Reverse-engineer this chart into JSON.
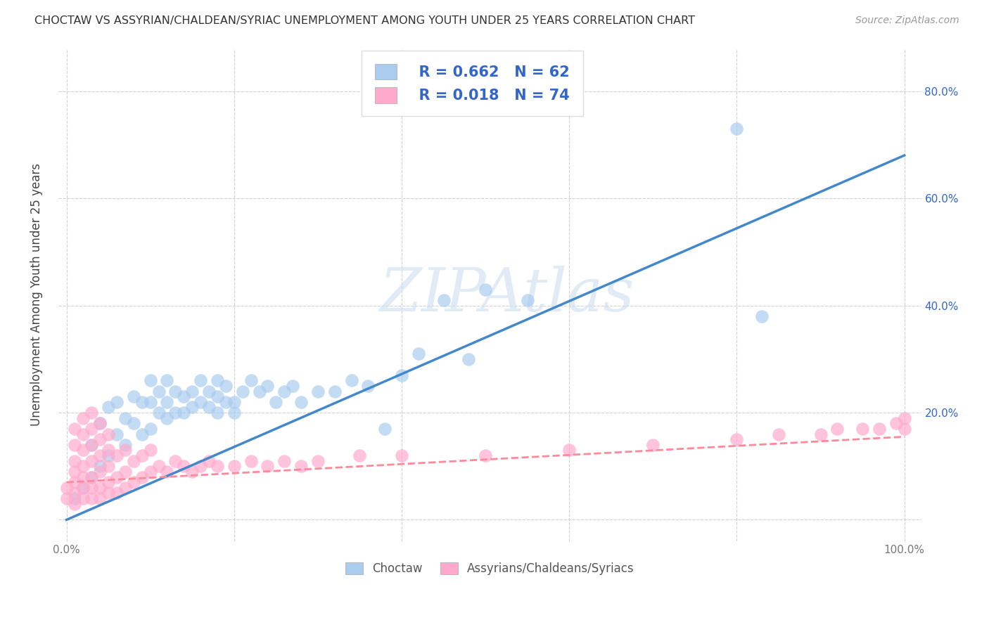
{
  "title": "CHOCTAW VS ASSYRIAN/CHALDEAN/SYRIAC UNEMPLOYMENT AMONG YOUTH UNDER 25 YEARS CORRELATION CHART",
  "source": "Source: ZipAtlas.com",
  "ylabel": "Unemployment Among Youth under 25 years",
  "xlim": [
    -0.01,
    1.02
  ],
  "ylim": [
    -0.04,
    0.88
  ],
  "xticks": [
    0.0,
    0.2,
    0.4,
    0.6,
    0.8,
    1.0
  ],
  "xticklabels": [
    "0.0%",
    "",
    "",
    "",
    "",
    "100.0%"
  ],
  "yticks": [
    0.0,
    0.2,
    0.4,
    0.6,
    0.8
  ],
  "yticklabels": [
    "",
    "",
    "",
    "",
    ""
  ],
  "right_yticks": [
    0.2,
    0.4,
    0.6,
    0.8
  ],
  "right_yticklabels": [
    "20.0%",
    "40.0%",
    "60.0%",
    "80.0%"
  ],
  "legend_r1": "R = 0.662",
  "legend_n1": "N = 62",
  "legend_r2": "R = 0.018",
  "legend_n2": "N = 74",
  "blue_color": "#AACCEE",
  "pink_color": "#FFAACC",
  "line_blue": "#4488CC",
  "line_pink": "#FF8899",
  "text_blue": "#3366CC",
  "watermark": "ZIPAtlas",
  "watermark_color": "#C8DCF0",
  "background_color": "#FFFFFF",
  "grid_color": "#CCCCCC",
  "choctaw_x": [
    0.01,
    0.02,
    0.03,
    0.03,
    0.04,
    0.04,
    0.05,
    0.05,
    0.06,
    0.06,
    0.07,
    0.07,
    0.08,
    0.08,
    0.09,
    0.09,
    0.1,
    0.1,
    0.1,
    0.11,
    0.11,
    0.12,
    0.12,
    0.12,
    0.13,
    0.13,
    0.14,
    0.14,
    0.15,
    0.15,
    0.16,
    0.16,
    0.17,
    0.17,
    0.18,
    0.18,
    0.18,
    0.19,
    0.19,
    0.2,
    0.2,
    0.21,
    0.22,
    0.23,
    0.24,
    0.25,
    0.26,
    0.27,
    0.28,
    0.3,
    0.32,
    0.34,
    0.36,
    0.38,
    0.4,
    0.42,
    0.45,
    0.48,
    0.5,
    0.55,
    0.8,
    0.83
  ],
  "choctaw_y": [
    0.04,
    0.06,
    0.08,
    0.14,
    0.1,
    0.18,
    0.12,
    0.21,
    0.16,
    0.22,
    0.14,
    0.19,
    0.18,
    0.23,
    0.16,
    0.22,
    0.17,
    0.22,
    0.26,
    0.2,
    0.24,
    0.19,
    0.22,
    0.26,
    0.2,
    0.24,
    0.2,
    0.23,
    0.21,
    0.24,
    0.22,
    0.26,
    0.21,
    0.24,
    0.2,
    0.23,
    0.26,
    0.22,
    0.25,
    0.2,
    0.22,
    0.24,
    0.26,
    0.24,
    0.25,
    0.22,
    0.24,
    0.25,
    0.22,
    0.24,
    0.24,
    0.26,
    0.25,
    0.17,
    0.27,
    0.31,
    0.41,
    0.3,
    0.43,
    0.41,
    0.73,
    0.38
  ],
  "assyrian_x": [
    0.0,
    0.0,
    0.01,
    0.01,
    0.01,
    0.01,
    0.01,
    0.01,
    0.01,
    0.02,
    0.02,
    0.02,
    0.02,
    0.02,
    0.02,
    0.02,
    0.03,
    0.03,
    0.03,
    0.03,
    0.03,
    0.03,
    0.03,
    0.04,
    0.04,
    0.04,
    0.04,
    0.04,
    0.04,
    0.05,
    0.05,
    0.05,
    0.05,
    0.05,
    0.06,
    0.06,
    0.06,
    0.07,
    0.07,
    0.07,
    0.08,
    0.08,
    0.09,
    0.09,
    0.1,
    0.1,
    0.11,
    0.12,
    0.13,
    0.14,
    0.15,
    0.16,
    0.17,
    0.18,
    0.2,
    0.22,
    0.24,
    0.26,
    0.28,
    0.3,
    0.35,
    0.4,
    0.5,
    0.6,
    0.7,
    0.8,
    0.85,
    0.9,
    0.92,
    0.95,
    0.97,
    0.99,
    1.0,
    1.0
  ],
  "assyrian_y": [
    0.04,
    0.06,
    0.03,
    0.05,
    0.07,
    0.09,
    0.11,
    0.14,
    0.17,
    0.04,
    0.06,
    0.08,
    0.1,
    0.13,
    0.16,
    0.19,
    0.04,
    0.06,
    0.08,
    0.11,
    0.14,
    0.17,
    0.2,
    0.04,
    0.06,
    0.09,
    0.12,
    0.15,
    0.18,
    0.05,
    0.07,
    0.1,
    0.13,
    0.16,
    0.05,
    0.08,
    0.12,
    0.06,
    0.09,
    0.13,
    0.07,
    0.11,
    0.08,
    0.12,
    0.09,
    0.13,
    0.1,
    0.09,
    0.11,
    0.1,
    0.09,
    0.1,
    0.11,
    0.1,
    0.1,
    0.11,
    0.1,
    0.11,
    0.1,
    0.11,
    0.12,
    0.12,
    0.12,
    0.13,
    0.14,
    0.15,
    0.16,
    0.16,
    0.17,
    0.17,
    0.17,
    0.18,
    0.17,
    0.19
  ],
  "blue_trendline": [
    0.0,
    1.0,
    0.0,
    0.68
  ],
  "pink_trendline": [
    0.0,
    1.0,
    0.07,
    0.155
  ]
}
